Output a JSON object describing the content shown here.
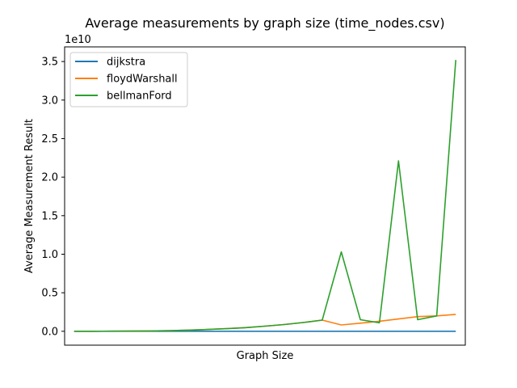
{
  "chart_data": {
    "type": "line",
    "title": "Average measurements by graph size (time_nodes.csv)",
    "xlabel": "Graph Size",
    "ylabel": "Average Measurement Result",
    "y_offset_label": "1e10",
    "y_scale": 10000000000.0,
    "ylim": [
      -0.18,
      3.69
    ],
    "xlim": [
      -0.5,
      20.5
    ],
    "y_ticks": [
      {
        "value": 0.0,
        "label": "0.0"
      },
      {
        "value": 0.5,
        "label": "0.5"
      },
      {
        "value": 1.0,
        "label": "1.0"
      },
      {
        "value": 1.5,
        "label": "1.5"
      },
      {
        "value": 2.0,
        "label": "2.0"
      },
      {
        "value": 2.5,
        "label": "2.5"
      },
      {
        "value": 3.0,
        "label": "3.0"
      },
      {
        "value": 3.5,
        "label": "3.5"
      }
    ],
    "grid": false,
    "legend_position": "upper-left",
    "x": [
      0,
      1,
      2,
      3,
      4,
      5,
      6,
      7,
      8,
      9,
      10,
      11,
      12,
      13,
      14,
      15,
      16,
      17,
      18,
      19,
      20
    ],
    "series": [
      {
        "name": "dijkstra",
        "color": "#1f77b4",
        "values": [
          0,
          0,
          0,
          0,
          0,
          0,
          0,
          0,
          0,
          0,
          0,
          0,
          0,
          0,
          0,
          0,
          0,
          0,
          0,
          0,
          0
        ]
      },
      {
        "name": "floydWarshall",
        "color": "#ff7f0e",
        "values": [
          0,
          0,
          0.001,
          0.002,
          0.005,
          0.009,
          0.015,
          0.023,
          0.034,
          0.048,
          0.066,
          0.087,
          0.114,
          0.145,
          0.082,
          0.105,
          0.13,
          0.16,
          0.19,
          0.2,
          0.22
        ]
      },
      {
        "name": "bellmanFord",
        "color": "#2ca02c",
        "values": [
          0,
          0,
          0.001,
          0.002,
          0.005,
          0.009,
          0.015,
          0.023,
          0.034,
          0.048,
          0.066,
          0.087,
          0.114,
          0.145,
          1.03,
          0.15,
          0.11,
          2.21,
          0.15,
          0.2,
          3.52
        ]
      }
    ]
  }
}
